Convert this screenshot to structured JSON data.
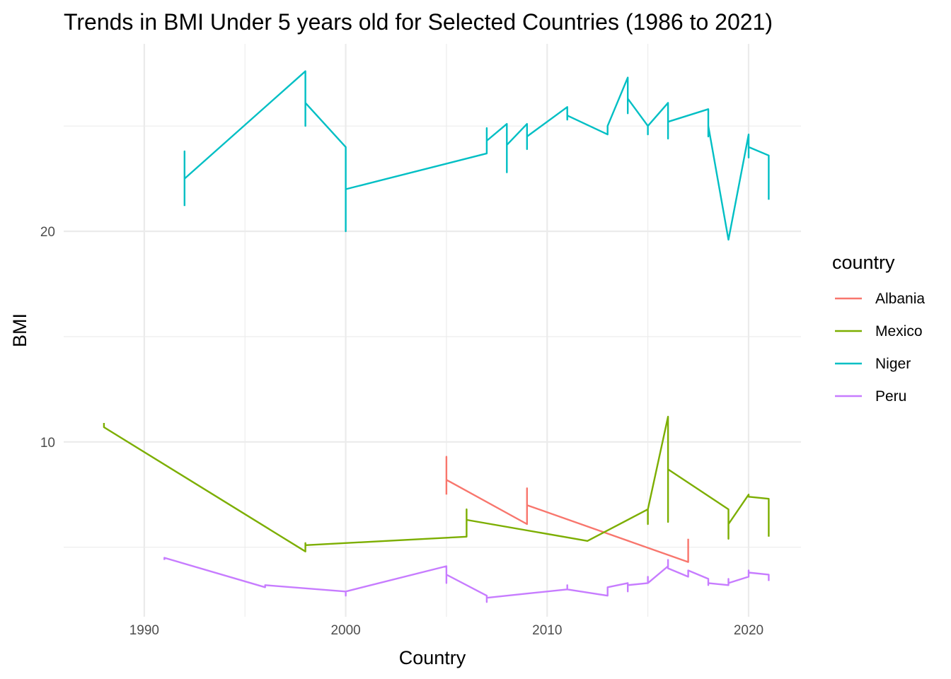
{
  "chart_data": {
    "type": "line",
    "title": "Trends in BMI Under 5 years old for Selected Countries (1986 to 2021)",
    "xlabel": "Country",
    "ylabel": "BMI",
    "xlim": [
      1986,
      2022.6
    ],
    "ylim": [
      1.7,
      28.9
    ],
    "x_major_ticks": [
      1990,
      2000,
      2010,
      2020
    ],
    "x_minor_ticks": [
      1995,
      2005,
      2015
    ],
    "y_major_ticks": [
      10,
      20
    ],
    "y_minor_ticks": [
      5,
      15,
      25
    ],
    "grid": true,
    "legend": {
      "title": "country",
      "position": "right"
    },
    "series": [
      {
        "name": "Albania",
        "color": "#F8766D",
        "points": [
          [
            2005,
            7.5
          ],
          [
            2005,
            9.3
          ],
          [
            2005,
            8.2
          ],
          [
            2009,
            6.1
          ],
          [
            2009,
            7.8
          ],
          [
            2009,
            7.0
          ],
          [
            2017,
            4.3
          ],
          [
            2017,
            5.4
          ]
        ]
      },
      {
        "name": "Mexico",
        "color": "#7CAE00",
        "points": [
          [
            1988,
            10.9
          ],
          [
            1988,
            10.7
          ],
          [
            1998,
            4.8
          ],
          [
            1998,
            5.2
          ],
          [
            1998,
            5.1
          ],
          [
            2006,
            5.5
          ],
          [
            2006,
            6.8
          ],
          [
            2006,
            6.3
          ],
          [
            2012,
            5.3
          ],
          [
            2015,
            6.8
          ],
          [
            2015,
            6.1
          ],
          [
            2015,
            6.8
          ],
          [
            2016,
            11.2
          ],
          [
            2016,
            6.2
          ],
          [
            2016,
            8.7
          ],
          [
            2019,
            6.8
          ],
          [
            2019,
            5.4
          ],
          [
            2019,
            6.1
          ],
          [
            2020,
            7.5
          ],
          [
            2020,
            7.4
          ],
          [
            2021,
            7.3
          ],
          [
            2021,
            5.5
          ]
        ]
      },
      {
        "name": "Niger",
        "color": "#00BFC4",
        "points": [
          [
            1992,
            21.2
          ],
          [
            1992,
            23.8
          ],
          [
            1992,
            22.5
          ],
          [
            1998,
            27.6
          ],
          [
            1998,
            25.0
          ],
          [
            1998,
            26.1
          ],
          [
            2000,
            24.0
          ],
          [
            2000,
            20.0
          ],
          [
            2000,
            22.0
          ],
          [
            2007,
            23.7
          ],
          [
            2007,
            24.9
          ],
          [
            2007,
            24.3
          ],
          [
            2008,
            25.1
          ],
          [
            2008,
            22.8
          ],
          [
            2008,
            24.1
          ],
          [
            2009,
            25.1
          ],
          [
            2009,
            23.9
          ],
          [
            2009,
            24.5
          ],
          [
            2011,
            25.9
          ],
          [
            2011,
            25.3
          ],
          [
            2011,
            25.5
          ],
          [
            2013,
            24.6
          ],
          [
            2013,
            25.0
          ],
          [
            2014,
            27.3
          ],
          [
            2014,
            25.6
          ],
          [
            2014,
            26.3
          ],
          [
            2015,
            25.0
          ],
          [
            2015,
            24.6
          ],
          [
            2015,
            25.0
          ],
          [
            2016,
            26.1
          ],
          [
            2016,
            24.4
          ],
          [
            2016,
            25.2
          ],
          [
            2018,
            25.8
          ],
          [
            2018,
            24.5
          ],
          [
            2018,
            25.0
          ],
          [
            2019,
            19.6
          ],
          [
            2020,
            24.6
          ],
          [
            2020,
            23.5
          ],
          [
            2020,
            24.0
          ],
          [
            2021,
            23.6
          ],
          [
            2021,
            21.5
          ]
        ]
      },
      {
        "name": "Peru",
        "color": "#C77CFF",
        "points": [
          [
            1991,
            4.4
          ],
          [
            1991,
            4.5
          ],
          [
            1996,
            3.1
          ],
          [
            1996,
            3.2
          ],
          [
            2000,
            2.9
          ],
          [
            2000,
            2.7
          ],
          [
            2000,
            2.9
          ],
          [
            2005,
            4.1
          ],
          [
            2005,
            3.3
          ],
          [
            2005,
            3.7
          ],
          [
            2007,
            2.7
          ],
          [
            2007,
            2.4
          ],
          [
            2007,
            2.6
          ],
          [
            2009,
            2.8
          ],
          [
            2011,
            3.0
          ],
          [
            2011,
            3.2
          ],
          [
            2011,
            3.0
          ],
          [
            2013,
            2.7
          ],
          [
            2013,
            3.1
          ],
          [
            2014,
            3.3
          ],
          [
            2014,
            2.9
          ],
          [
            2014,
            3.2
          ],
          [
            2015,
            3.3
          ],
          [
            2015,
            3.6
          ],
          [
            2015,
            3.3
          ],
          [
            2016,
            4.1
          ],
          [
            2016,
            4.4
          ],
          [
            2016,
            4.0
          ],
          [
            2017,
            3.6
          ],
          [
            2017,
            3.9
          ],
          [
            2018,
            3.5
          ],
          [
            2018,
            3.2
          ],
          [
            2018,
            3.3
          ],
          [
            2019,
            3.2
          ],
          [
            2019,
            3.5
          ],
          [
            2019,
            3.3
          ],
          [
            2020,
            3.6
          ],
          [
            2020,
            3.9
          ],
          [
            2020,
            3.8
          ],
          [
            2021,
            3.7
          ],
          [
            2021,
            3.4
          ]
        ]
      }
    ]
  }
}
